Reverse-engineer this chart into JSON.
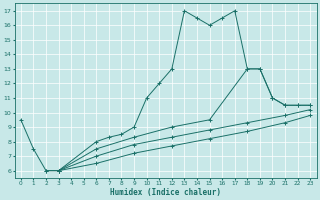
{
  "xlabel": "Humidex (Indice chaleur)",
  "xlim": [
    -0.5,
    23.5
  ],
  "ylim": [
    5.5,
    17.5
  ],
  "xticks": [
    0,
    1,
    2,
    3,
    4,
    5,
    6,
    7,
    8,
    9,
    10,
    11,
    12,
    13,
    14,
    15,
    16,
    17,
    18,
    19,
    20,
    21,
    22,
    23
  ],
  "yticks": [
    6,
    7,
    8,
    9,
    10,
    11,
    12,
    13,
    14,
    15,
    16,
    17
  ],
  "bg_color": "#c8e8e8",
  "line_color": "#1a7068",
  "grid_color": "#ffffff",
  "series": [
    {
      "x": [
        0,
        1,
        2,
        3,
        6,
        7,
        8,
        9,
        10,
        11,
        12,
        13,
        14,
        15,
        16,
        17,
        18,
        19,
        20,
        21,
        22,
        23
      ],
      "y": [
        9.5,
        7.5,
        6.0,
        6.0,
        8.0,
        8.3,
        8.5,
        9.0,
        11.0,
        12.0,
        13.0,
        17.0,
        16.5,
        16.0,
        16.5,
        17.0,
        13.0,
        13.0,
        11.0,
        10.5,
        10.5,
        10.5
      ]
    },
    {
      "x": [
        2,
        3,
        6,
        9,
        12,
        15,
        18,
        19,
        20,
        21,
        22,
        23
      ],
      "y": [
        6.0,
        6.0,
        7.5,
        8.3,
        9.0,
        9.5,
        13.0,
        13.0,
        11.0,
        10.5,
        10.5,
        10.5
      ]
    },
    {
      "x": [
        3,
        6,
        9,
        12,
        15,
        18,
        21,
        23
      ],
      "y": [
        6.0,
        7.0,
        7.8,
        8.3,
        8.8,
        9.3,
        9.8,
        10.2
      ]
    },
    {
      "x": [
        3,
        6,
        9,
        12,
        15,
        18,
        21,
        23
      ],
      "y": [
        6.0,
        6.5,
        7.2,
        7.7,
        8.2,
        8.7,
        9.3,
        9.8
      ]
    }
  ]
}
